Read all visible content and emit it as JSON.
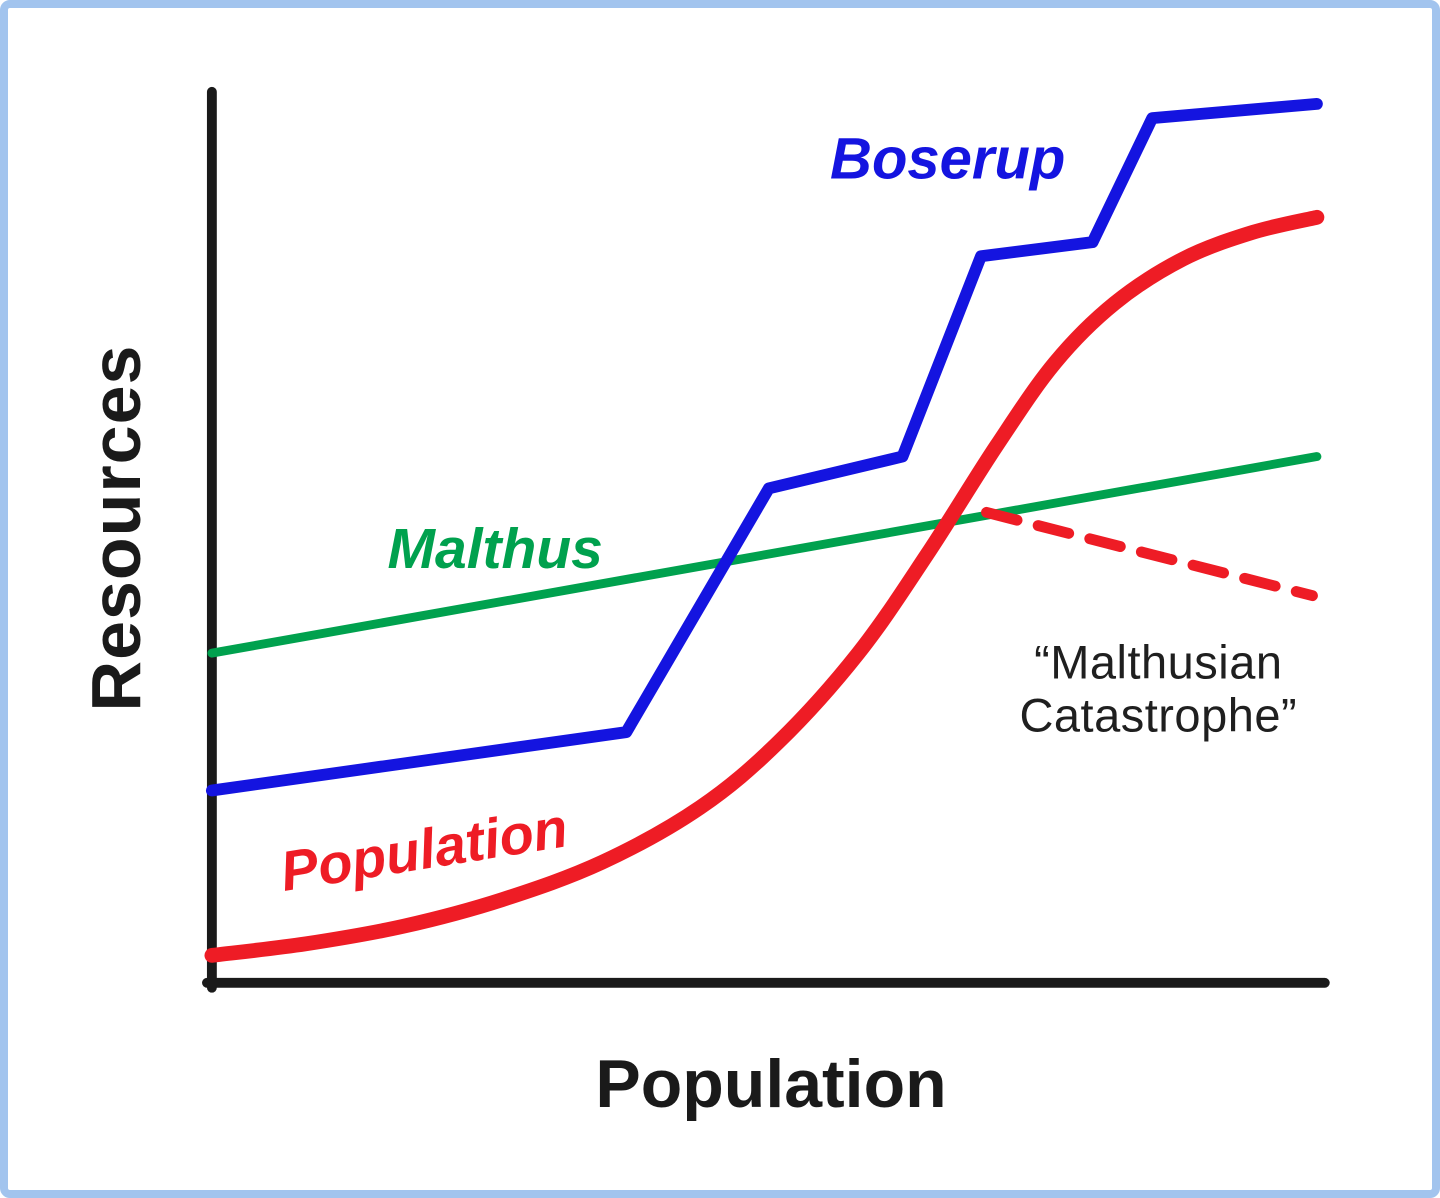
{
  "figure": {
    "border_color": "#a2c4ee",
    "background": "#ffffff"
  },
  "chart_data": {
    "type": "line",
    "title": "",
    "xlabel": "Population",
    "ylabel": "Resources",
    "x_range": [
      0,
      100
    ],
    "y_range": [
      0,
      100
    ],
    "grid": false,
    "legend": "inline-labels",
    "axis_color": "#1a1a1a",
    "series": [
      {
        "name": "Malthus",
        "color": "#00a14e",
        "style": "solid",
        "smooth": false,
        "width": 9,
        "points": [
          [
            0,
            37.2
          ],
          [
            100,
            59.4
          ]
        ]
      },
      {
        "name": "Boserup",
        "color": "#1414e0",
        "style": "solid",
        "smooth": false,
        "width": 12,
        "points": [
          [
            0,
            21.7
          ],
          [
            37.5,
            28.3
          ],
          [
            50.4,
            55.8
          ],
          [
            62.5,
            59.4
          ],
          [
            69.6,
            82.0
          ],
          [
            79.7,
            83.6
          ],
          [
            85.1,
            97.6
          ],
          [
            100,
            99.2
          ]
        ]
      },
      {
        "name": "Population",
        "color": "#ee1c25",
        "style": "solid",
        "smooth": true,
        "width": 15,
        "points": [
          [
            0,
            3.1
          ],
          [
            8.5,
            4.4
          ],
          [
            17.4,
            6.4
          ],
          [
            26.3,
            9.4
          ],
          [
            35.3,
            13.6
          ],
          [
            44.2,
            19.8
          ],
          [
            51.3,
            27.2
          ],
          [
            58.5,
            37.2
          ],
          [
            64.7,
            48.3
          ],
          [
            71.0,
            60.6
          ],
          [
            76.3,
            70.0
          ],
          [
            81.7,
            76.7
          ],
          [
            87.9,
            81.7
          ],
          [
            94.2,
            84.7
          ],
          [
            100,
            86.4
          ]
        ]
      },
      {
        "name": "Malthusian Catastrophe decline",
        "color": "#ee1c25",
        "style": "dashed",
        "smooth": false,
        "width": 11,
        "points": [
          [
            70.1,
            53.1
          ],
          [
            99.6,
            43.7
          ]
        ]
      }
    ],
    "annotations": [
      {
        "text": "Boserup",
        "x": 65.6,
        "y": 93.1,
        "color": "#1414e0"
      },
      {
        "text": "Malthus",
        "x": 25.2,
        "y": 49.7,
        "color": "#00a14e"
      },
      {
        "text": "Population",
        "x": 18.8,
        "y": 16.3,
        "color": "#ee1c25"
      },
      {
        "text": "“Malthusian\nCatastrophe”",
        "x": 84.4,
        "y": 34.2,
        "color": "#1f1f1f"
      }
    ]
  }
}
